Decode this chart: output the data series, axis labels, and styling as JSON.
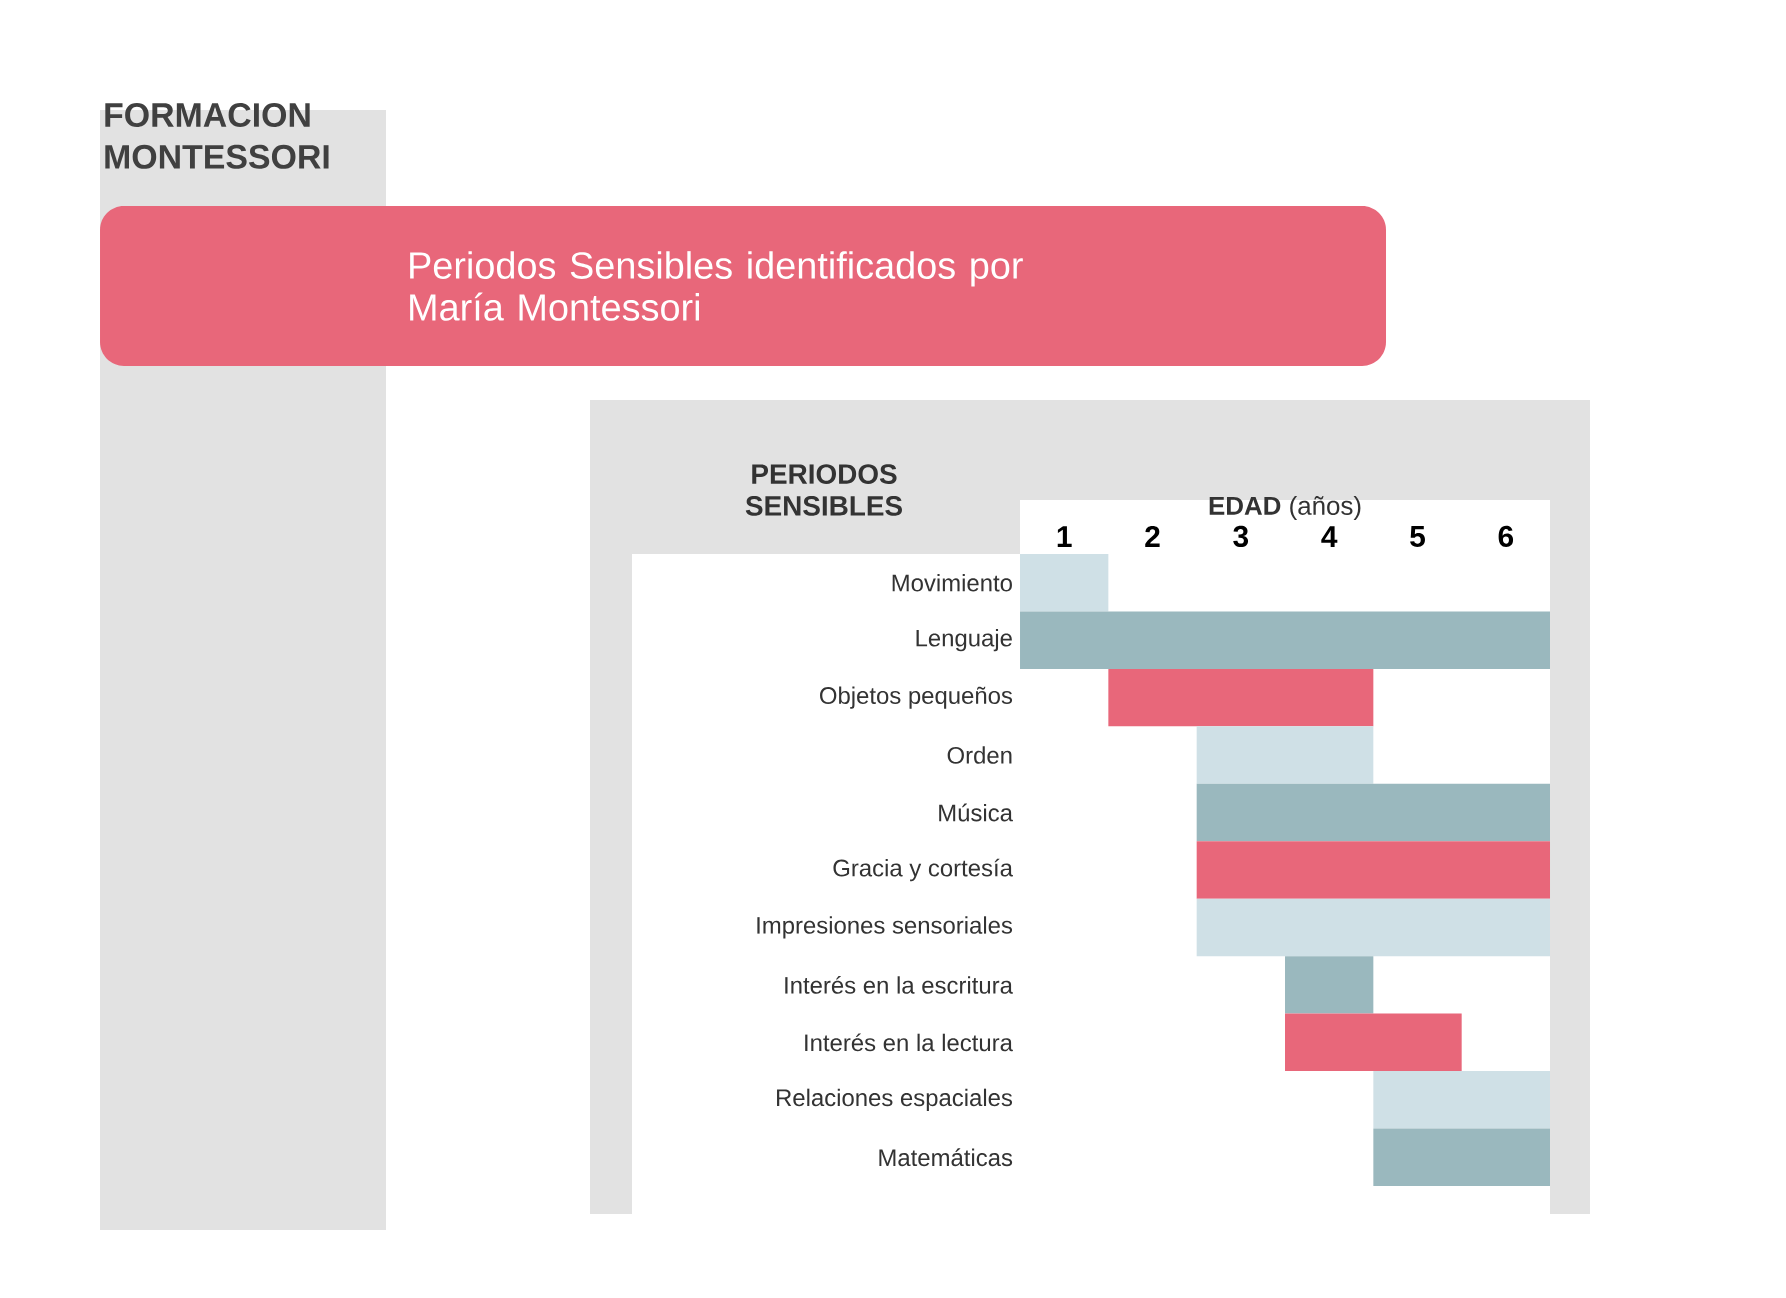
{
  "chart_data": {
    "type": "bar",
    "orientation": "horizontal",
    "title": "Periodos Sensibles identificados por María Montessori",
    "xlabel": "**EDAD** (años)",
    "ylabel": "PERIODOS SENSIBLES",
    "annotations": [
      "FORMACION MONTESSORI"
    ],
    "categories": [
      "Movimiento",
      "Lenguaje",
      "Objetos pequeños",
      "Orden",
      "Música",
      "Gracia y cortesía",
      "Impresiones sensoriales",
      "Interés en la escritura",
      "Interés en la lectura",
      "Relaciones espaciales",
      "Matemáticas"
    ],
    "base": [
      0.5,
      0.5,
      1.5,
      2.5,
      2.5,
      2.5,
      2.5,
      3.5,
      3.5,
      4.5,
      4.5
    ],
    "values": [
      1,
      6,
      3,
      2,
      4,
      4,
      4,
      1,
      2,
      2,
      2
    ],
    "colors": [
      "#cfe0e6",
      "#9ab8be",
      "#e8677a",
      "#cfe0e6",
      "#9ab8be",
      "#e8677a",
      "#cfe0e6",
      "#9ab8be",
      "#e8677a",
      "#cfe0e6",
      "#9ab8be"
    ],
    "xlim": [
      0.5,
      6.5
    ],
    "xticks": [
      1,
      2,
      3,
      4,
      5,
      6
    ]
  }
}
